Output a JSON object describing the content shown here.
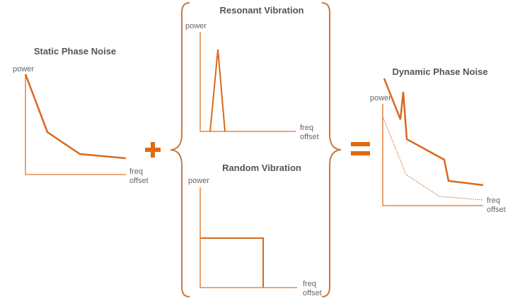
{
  "accent_color": "#d9691e",
  "static": {
    "title": "Static Phase Noise",
    "y_label": "power",
    "x_label_1": "freq",
    "x_label_2": "offset"
  },
  "resonant": {
    "title": "Resonant Vibration",
    "y_label": "power",
    "x_label_1": "freq",
    "x_label_2": "offset"
  },
  "random": {
    "title": "Random Vibration",
    "y_label": "power",
    "x_label_1": "freq",
    "x_label_2": "offset"
  },
  "dynamic": {
    "title": "Dynamic Phase Noise",
    "y_label": "power",
    "x_label_1": "freq",
    "x_label_2": "offset"
  },
  "operators": {
    "plus": "plus-sign",
    "equals": "equals-sign"
  }
}
